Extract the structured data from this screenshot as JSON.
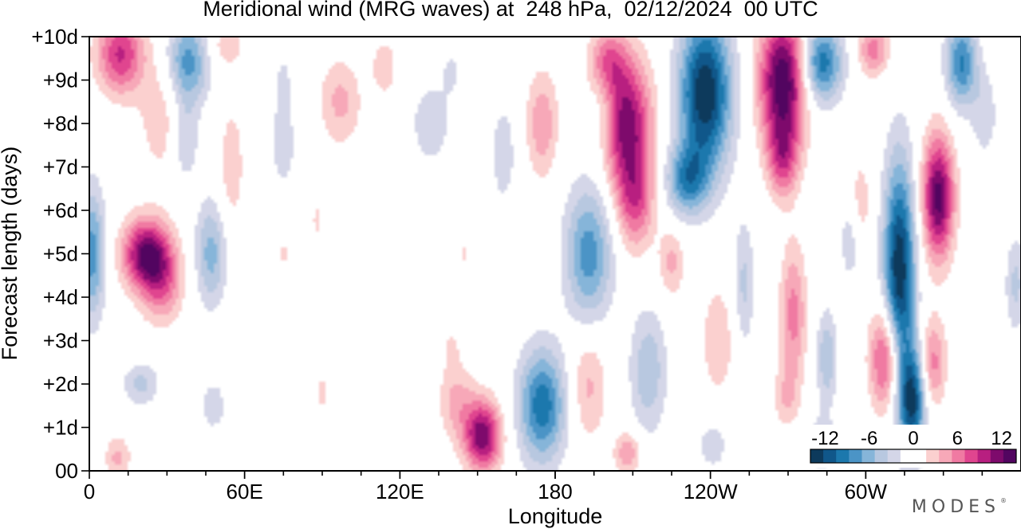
{
  "chart_data": {
    "type": "heatmap",
    "title": "Meridional wind (MRG waves) at  248 hPa,  02/12/2024  00 UTC",
    "xlabel": "Longitude",
    "ylabel": "Forecast length (days)",
    "x_ticks": [
      "0",
      "60E",
      "120E",
      "180",
      "120W",
      "60W"
    ],
    "x_tick_values": [
      0,
      60,
      120,
      180,
      240,
      300
    ],
    "xlim": [
      0,
      360
    ],
    "y_ticks": [
      "00",
      "+1d",
      "+2d",
      "+3d",
      "+4d",
      "+5d",
      "+6d",
      "+7d",
      "+8d",
      "+9d",
      "+10d"
    ],
    "y_tick_values": [
      0,
      1,
      2,
      3,
      4,
      5,
      6,
      7,
      8,
      9,
      10
    ],
    "ylim": [
      0,
      10
    ],
    "colorbar": {
      "labels": [
        "-12",
        "-6",
        "0",
        "6",
        "12"
      ],
      "label_values": [
        -12,
        -6,
        0,
        6,
        12
      ],
      "range": [
        -14,
        14
      ],
      "placement": "bottom-right",
      "colors": [
        "#0d3a5c",
        "#10578a",
        "#1c78ad",
        "#4b94c6",
        "#86b5d9",
        "#b8c8e0",
        "#d4d6e8",
        "#ffffff",
        "#ffffff",
        "#fbd0cf",
        "#f7a8b8",
        "#f07aa2",
        "#e0458f",
        "#b81f80",
        "#7e0a6c",
        "#520560"
      ]
    },
    "features": [
      {
        "lon": 12,
        "day": 9.6,
        "value": 9,
        "rx": 9,
        "ry": 0.9
      },
      {
        "lon": 38,
        "day": 9.4,
        "value": -8,
        "rx": 8,
        "ry": 1.0
      },
      {
        "lon": 28,
        "day": 8.2,
        "value": 3,
        "rx": 9,
        "ry": 1.4
      },
      {
        "lon": 1,
        "day": 5.0,
        "value": -8,
        "rx": 5,
        "ry": 1.5
      },
      {
        "lon": 22,
        "day": 5.0,
        "value": 12,
        "rx": 9,
        "ry": 0.8
      },
      {
        "lon": 28,
        "day": 4.3,
        "value": 6,
        "rx": 8,
        "ry": 0.9
      },
      {
        "lon": 47,
        "day": 5.0,
        "value": -6,
        "rx": 6,
        "ry": 1.2
      },
      {
        "lon": 37,
        "day": 7.6,
        "value": -4,
        "rx": 5,
        "ry": 0.9
      },
      {
        "lon": 11,
        "day": 0.3,
        "value": 4,
        "rx": 5,
        "ry": 0.5
      },
      {
        "lon": 20,
        "day": 2.0,
        "value": -4,
        "rx": 7,
        "ry": 0.5
      },
      {
        "lon": 48,
        "day": 1.5,
        "value": -3,
        "rx": 5,
        "ry": 0.6
      },
      {
        "lon": 55,
        "day": 7.0,
        "value": 3,
        "rx": 5,
        "ry": 1.5
      },
      {
        "lon": 75,
        "day": 7.5,
        "value": -3,
        "rx": 5,
        "ry": 1.0
      },
      {
        "lon": 53,
        "day": 9.8,
        "value": 3,
        "rx": 7,
        "ry": 0.5
      },
      {
        "lon": 75,
        "day": 5.0,
        "value": 2,
        "rx": 4,
        "ry": 0.4
      },
      {
        "lon": 88,
        "day": 5.8,
        "value": 2,
        "rx": 3,
        "ry": 0.7
      },
      {
        "lon": 97,
        "day": 8.5,
        "value": 4,
        "rx": 8,
        "ry": 1.0
      },
      {
        "lon": 114,
        "day": 9.3,
        "value": 3,
        "rx": 5,
        "ry": 0.7
      },
      {
        "lon": 90,
        "day": 1.8,
        "value": 2,
        "rx": 4,
        "ry": 0.7
      },
      {
        "lon": 75,
        "day": 9.0,
        "value": -2,
        "rx": 4,
        "ry": 0.8
      },
      {
        "lon": 152,
        "day": 0.8,
        "value": 12,
        "rx": 7,
        "ry": 0.8
      },
      {
        "lon": 142,
        "day": 1.6,
        "value": 4,
        "rx": 7,
        "ry": 0.9
      },
      {
        "lon": 140,
        "day": 2.8,
        "value": 2,
        "rx": 3,
        "ry": 0.5
      },
      {
        "lon": 132,
        "day": 8.0,
        "value": -3,
        "rx": 8,
        "ry": 1.0
      },
      {
        "lon": 145,
        "day": 5.0,
        "value": 2,
        "rx": 3,
        "ry": 0.4
      },
      {
        "lon": 140,
        "day": 9.2,
        "value": -2,
        "rx": 4,
        "ry": 0.6
      },
      {
        "lon": 175,
        "day": 1.5,
        "value": -10,
        "rx": 9,
        "ry": 1.3
      },
      {
        "lon": 175,
        "day": 8.0,
        "value": 5,
        "rx": 6,
        "ry": 1.2
      },
      {
        "lon": 160,
        "day": 7.3,
        "value": -3,
        "rx": 5,
        "ry": 1.2
      },
      {
        "lon": 193,
        "day": 5.0,
        "value": -8,
        "rx": 9,
        "ry": 1.6
      },
      {
        "lon": 199,
        "day": 8.4,
        "value": -4,
        "rx": 6,
        "ry": 1.3
      },
      {
        "lon": 193,
        "day": 2.0,
        "value": 4,
        "rx": 7,
        "ry": 1.3
      },
      {
        "lon": 207,
        "day": 8.0,
        "value": 12,
        "rx": 10,
        "ry": 1.5
      },
      {
        "lon": 200,
        "day": 9.4,
        "value": 7,
        "rx": 7,
        "ry": 0.8
      },
      {
        "lon": 211,
        "day": 6.2,
        "value": 7,
        "rx": 7,
        "ry": 1.1
      },
      {
        "lon": 216,
        "day": 2.3,
        "value": -5,
        "rx": 7,
        "ry": 1.4
      },
      {
        "lon": 225,
        "day": 4.8,
        "value": 4,
        "rx": 5,
        "ry": 0.8
      },
      {
        "lon": 208,
        "day": 0.4,
        "value": 5,
        "rx": 5,
        "ry": 0.5
      },
      {
        "lon": 238,
        "day": 8.7,
        "value": -14,
        "rx": 10,
        "ry": 1.8
      },
      {
        "lon": 231,
        "day": 6.7,
        "value": -8,
        "rx": 8,
        "ry": 0.8
      },
      {
        "lon": 243,
        "day": 3.0,
        "value": 3,
        "rx": 7,
        "ry": 1.4
      },
      {
        "lon": 241,
        "day": 0.6,
        "value": -3,
        "rx": 6,
        "ry": 0.6
      },
      {
        "lon": 253,
        "day": 4.3,
        "value": -4,
        "rx": 4,
        "ry": 1.5
      },
      {
        "lon": 268,
        "day": 9.0,
        "value": 14,
        "rx": 9,
        "ry": 1.5
      },
      {
        "lon": 268,
        "day": 7.2,
        "value": 7,
        "rx": 6,
        "ry": 0.9
      },
      {
        "lon": 272,
        "day": 3.6,
        "value": 6,
        "rx": 5,
        "ry": 1.6
      },
      {
        "lon": 269,
        "day": 1.7,
        "value": 3,
        "rx": 5,
        "ry": 0.7
      },
      {
        "lon": 283,
        "day": 9.4,
        "value": -10,
        "rx": 8,
        "ry": 0.9
      },
      {
        "lon": 285,
        "day": 2.6,
        "value": -5,
        "rx": 4,
        "ry": 1.1
      },
      {
        "lon": 294,
        "day": 5.3,
        "value": -3,
        "rx": 4,
        "ry": 1.0
      },
      {
        "lon": 283,
        "day": 0.6,
        "value": -4,
        "rx": 5,
        "ry": 0.6
      },
      {
        "lon": 298,
        "day": 6.2,
        "value": 3,
        "rx": 4,
        "ry": 1.0
      },
      {
        "lon": 303,
        "day": 9.7,
        "value": 6,
        "rx": 6,
        "ry": 0.6
      },
      {
        "lon": 308,
        "day": 2.6,
        "value": 10,
        "rx": 6,
        "ry": 1.2
      },
      {
        "lon": 313,
        "day": 4.5,
        "value": -14,
        "rx": 6,
        "ry": 2.6
      },
      {
        "lon": 318,
        "day": 1.6,
        "value": -12,
        "rx": 5,
        "ry": 1.2
      },
      {
        "lon": 328,
        "day": 6.3,
        "value": 13,
        "rx": 6,
        "ry": 1.4
      },
      {
        "lon": 337,
        "day": 9.4,
        "value": -9,
        "rx": 6,
        "ry": 1.0
      },
      {
        "lon": 326,
        "day": 2.5,
        "value": 6,
        "rx": 5,
        "ry": 1.0
      },
      {
        "lon": 358,
        "day": 4.3,
        "value": -4,
        "rx": 4,
        "ry": 1.1
      },
      {
        "lon": 346,
        "day": 8.2,
        "value": -3,
        "rx": 5,
        "ry": 1.0
      }
    ]
  },
  "brand": "MODES"
}
